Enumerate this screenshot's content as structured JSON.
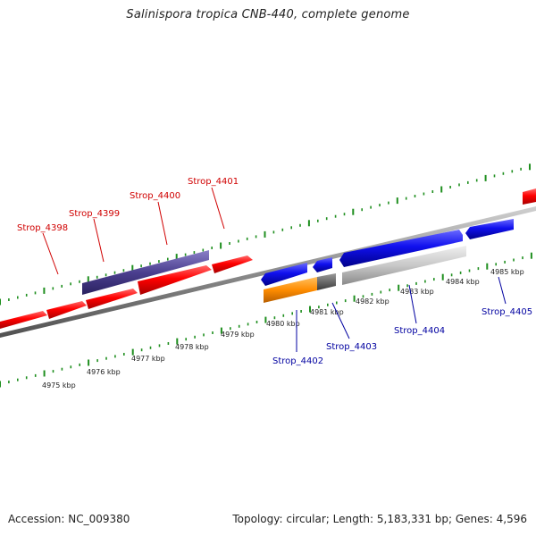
{
  "title": "Salinispora tropica CNB-440, complete genome",
  "footer": {
    "accession": "Accession: NC_009380",
    "summary": "Topology: circular; Length: 5,183,331 bp; Genes: 4,596"
  },
  "colors": {
    "forward_gene": "#ff0000",
    "reverse_gene": "#0000ee",
    "highlight_gene": "#4b3f8f",
    "rna_gene": "#ff8c00",
    "pseudo_gene": "#c8c8c8",
    "backbone": "#808080",
    "tick": "#1f8f1f",
    "label_forward": "#d00000",
    "label_reverse": "#0000a0"
  },
  "scale_labels": [
    "4975 kbp",
    "4976 kbp",
    "4977 kbp",
    "4978 kbp",
    "4979 kbp",
    "4980 kbp",
    "4981 kbp",
    "4982 kbp",
    "4983 kbp",
    "4984 kbp",
    "4985 kbp"
  ],
  "forward_labels": [
    "Strop_4398",
    "Strop_4399",
    "Strop_4400",
    "Strop_4401"
  ],
  "reverse_labels": [
    "Strop_4402",
    "Strop_4403",
    "Strop_4404",
    "Strop_4405"
  ]
}
